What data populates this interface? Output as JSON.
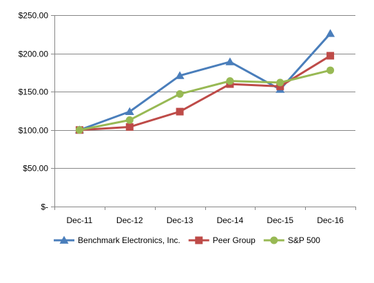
{
  "chart_data": {
    "type": "line",
    "title": "",
    "xlabel": "",
    "ylabel": "",
    "categories": [
      "Dec-11",
      "Dec-12",
      "Dec-13",
      "Dec-14",
      "Dec-15",
      "Dec-16"
    ],
    "ylim": [
      0,
      250
    ],
    "ytick_values": [
      0,
      50,
      100,
      150,
      200,
      250
    ],
    "ytick_labels": [
      "$-",
      "$50.00",
      "$100.00",
      "$150.00",
      "$200.00",
      "$250.00"
    ],
    "grid": true,
    "legend_position": "bottom",
    "series": [
      {
        "name": "Benchmark Electronics, Inc.",
        "color": "#4a7ebb",
        "marker": "triangle",
        "values": [
          100,
          124,
          171,
          189,
          153,
          226
        ]
      },
      {
        "name": "Peer Group",
        "color": "#be4b48",
        "marker": "square",
        "values": [
          100,
          104,
          124,
          160,
          157,
          197
        ]
      },
      {
        "name": "S&P 500",
        "color": "#98b954",
        "marker": "circle",
        "values": [
          100,
          113,
          147,
          164,
          162,
          178
        ]
      }
    ]
  }
}
